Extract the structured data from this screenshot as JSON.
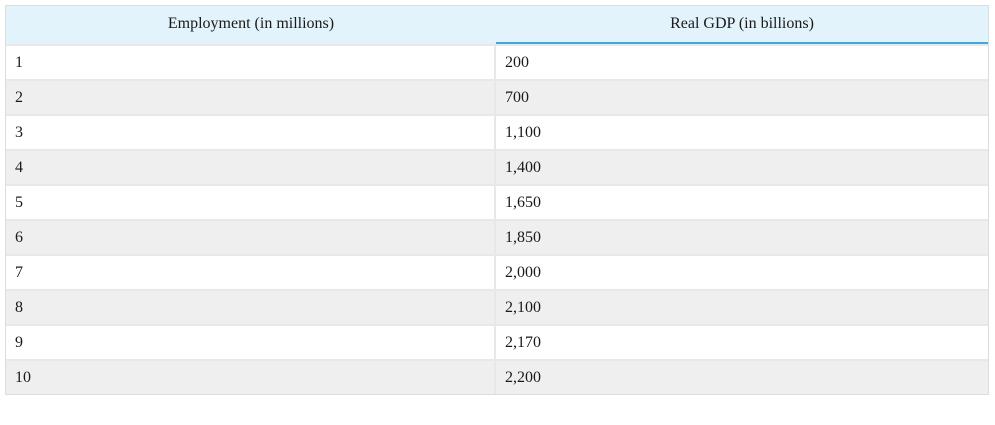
{
  "chart_data": {
    "type": "table",
    "columns": [
      "Employment (in millions)",
      "Real GDP (in billions)"
    ],
    "rows": [
      [
        "1",
        "200"
      ],
      [
        "2",
        "700"
      ],
      [
        "3",
        "1,100"
      ],
      [
        "4",
        "1,400"
      ],
      [
        "5",
        "1,650"
      ],
      [
        "6",
        "1,850"
      ],
      [
        "7",
        "2,000"
      ],
      [
        "8",
        "2,100"
      ],
      [
        "9",
        "2,170"
      ],
      [
        "10",
        "2,200"
      ]
    ],
    "x": [
      1,
      2,
      3,
      4,
      5,
      6,
      7,
      8,
      9,
      10
    ],
    "values": [
      200,
      700,
      1100,
      1400,
      1650,
      1850,
      2000,
      2100,
      2170,
      2200
    ]
  },
  "colors": {
    "header_bg": "#e3f3fb",
    "header_accent": "#3fa9dd",
    "row_odd": "#ffffff",
    "row_even": "#efefef"
  }
}
